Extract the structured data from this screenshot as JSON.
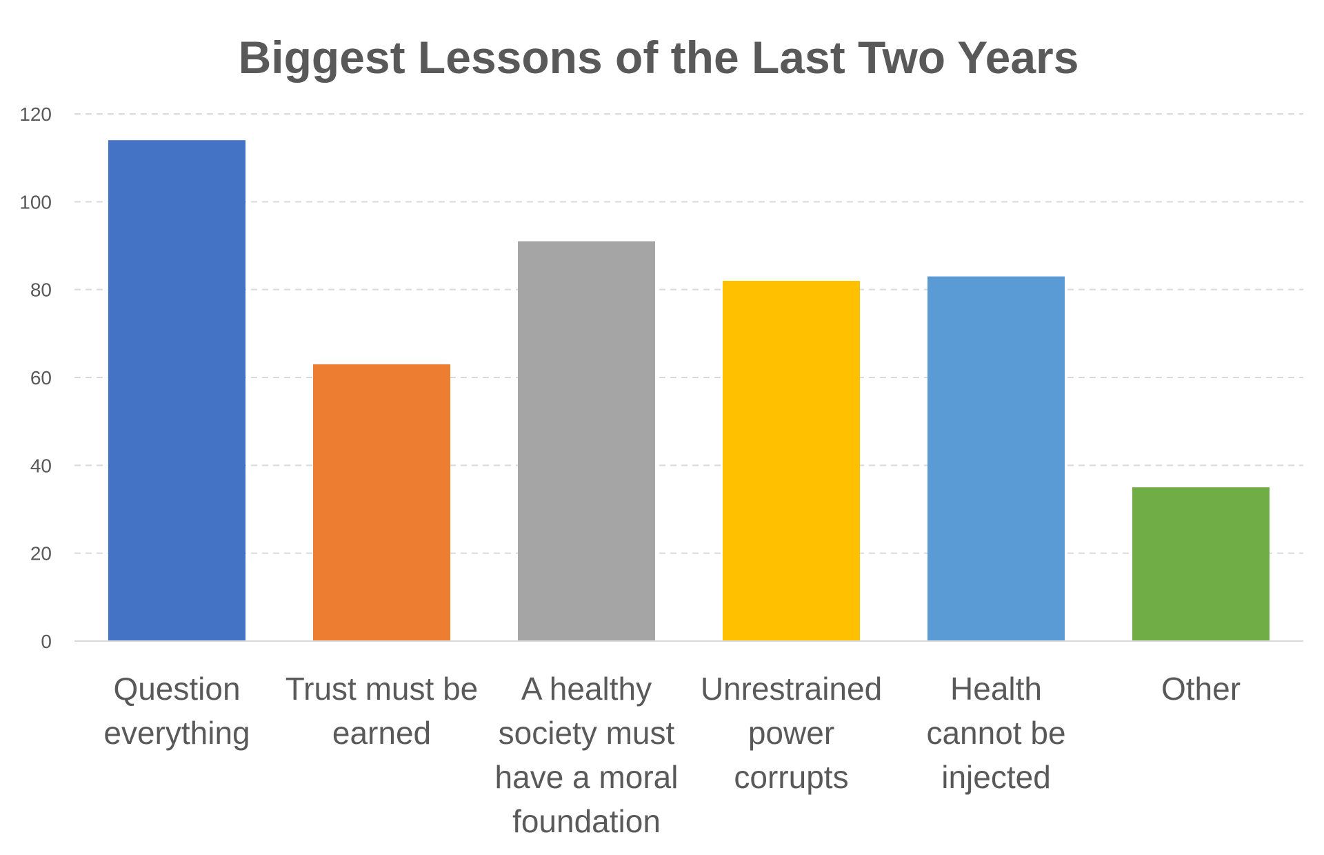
{
  "chart_data": {
    "type": "bar",
    "title": "Biggest Lessons of the Last Two Years",
    "xlabel": "",
    "ylabel": "",
    "ylim": [
      0,
      120
    ],
    "yticks": [
      0,
      20,
      40,
      60,
      80,
      100,
      120
    ],
    "grid": true,
    "categories": [
      [
        "Question",
        "everything"
      ],
      [
        "Trust must be",
        "earned"
      ],
      [
        "A healthy",
        "society must",
        "have a moral",
        "foundation"
      ],
      [
        "Unrestrained",
        "power",
        "corrupts"
      ],
      [
        "Health",
        "cannot be",
        "injected"
      ],
      [
        "Other"
      ]
    ],
    "values": [
      114,
      63,
      91,
      82,
      83,
      35
    ],
    "colors": [
      "#4472C4",
      "#ED7D31",
      "#A5A5A5",
      "#FFC000",
      "#5B9BD5",
      "#70AD47"
    ]
  }
}
